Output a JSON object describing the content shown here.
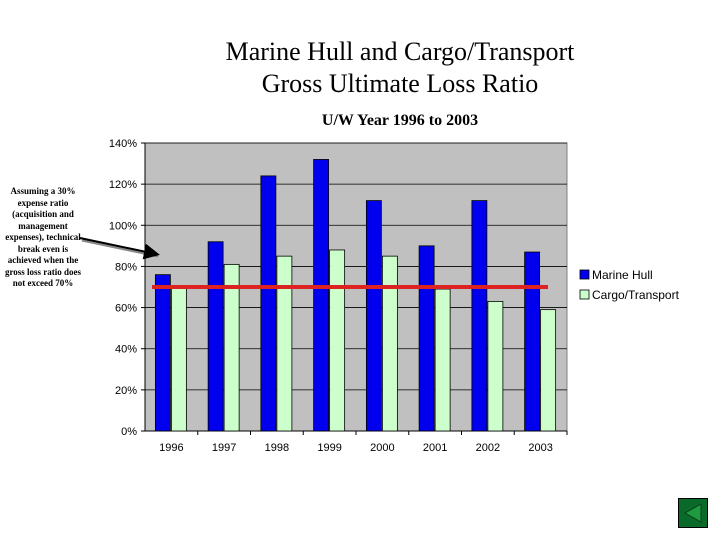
{
  "slide": {
    "title_line1": "Marine Hull and Cargo/Transport",
    "title_line2": "Gross Ultimate Loss Ratio",
    "subtitle": "U/W Year 1996 to 2003",
    "note": "Assuming a 30% expense ratio (acquisition and management expenses), technical break even is achieved when the gross loss ratio does not exceed 70%"
  },
  "colors": {
    "marine_hull": "#0000ee",
    "cargo_transport": "#ccffcc",
    "plot_background": "#c0c0c0",
    "break_even_line": "#dd2222",
    "nav_button": "#0a6a2a"
  },
  "chart_data": {
    "type": "bar",
    "title": "Marine Hull and Cargo/Transport Gross Ultimate Loss Ratio",
    "subtitle": "U/W Year 1996 to 2003",
    "categories": [
      "1996",
      "1997",
      "1998",
      "1999",
      "2000",
      "2001",
      "2002",
      "2003"
    ],
    "series": [
      {
        "name": "Marine Hull",
        "values": [
          76,
          92,
          124,
          132,
          112,
          90,
          112,
          87
        ]
      },
      {
        "name": "Cargo/Transport",
        "values": [
          70,
          81,
          85,
          88,
          85,
          69,
          63,
          59
        ]
      }
    ],
    "yticks": [
      "0%",
      "20%",
      "40%",
      "60%",
      "80%",
      "100%",
      "120%",
      "140%"
    ],
    "ylim": [
      0,
      140
    ],
    "ytick_step": 20,
    "grid": true,
    "legend": "right",
    "reference_line": 70
  },
  "nav": {
    "icon": "triangle-back-icon"
  }
}
